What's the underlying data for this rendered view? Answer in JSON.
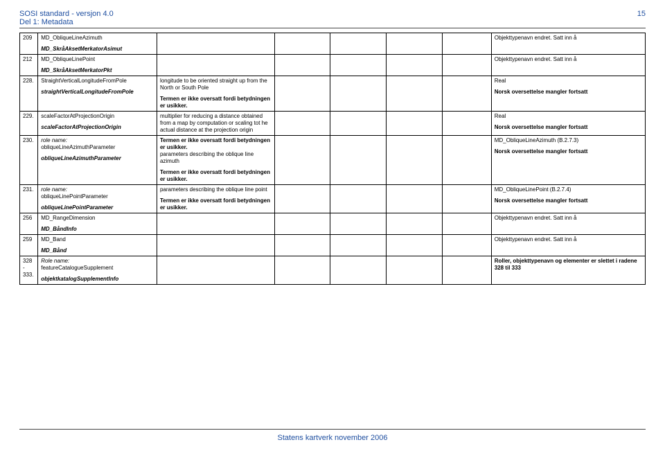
{
  "header": {
    "title1": "SOSI standard - versjon 4.0",
    "title2": "Del 1: Metadata",
    "page_num": "15"
  },
  "rows": [
    {
      "num": "209",
      "a1": "MD_ObliqueLineAzimuth",
      "a2_bi": "MD_SkråAksetMerkatorAsimut",
      "b1": "",
      "b2": "",
      "g1": "Objekttypenavn endret. Satt inn å",
      "g2": ""
    },
    {
      "num": "212",
      "a1": "MD_ObliqueLinePoint",
      "a2_bi": "MD_SkråAksetMerkatorPkt",
      "b1": "",
      "b2": "",
      "g1": "Objekttypenavn endret. Satt inn å",
      "g2": ""
    },
    {
      "num": "228.",
      "a1": "StraightVerticalLongitudeFromPole",
      "a2_bi": "straightVerticalLongitudeFromPole",
      "b1": "longitude to be oriented straight up from the North or South Pole",
      "b2_bold": "Termen er ikke oversatt fordi betydningen er usikker.",
      "g1": "Real",
      "g2_bold": "Norsk oversettelse mangler fortsatt"
    },
    {
      "num": "229.",
      "a1": "scaleFactorAtProjectionOrigin",
      "a2_bi": "scaleFactorAtProjectionOrigin",
      "b1": "multiplier for reducing a distance obtained from a map by computation or scaling tot he actual distance at the projection origin",
      "b2": "",
      "g1": "Real",
      "g2_bold": "Norsk oversettelse mangler fortsatt"
    },
    {
      "num": "230.",
      "a1_i": "role name:",
      "a1b": "obliqueLineAzimuthParameter",
      "a2_bi": "obliqueLineAzimuthParameter",
      "b0_bold": "Termen er ikke oversatt fordi betydningen er usikker.",
      "b1": "parameters describing the oblique line azimuth",
      "b2_bold": "Termen er ikke oversatt fordi betydningen er usikker.",
      "g1": "MD_ObliqueLineAzimuth (B.2.7.3)",
      "g2_bold": "Norsk oversettelse mangler fortsatt"
    },
    {
      "num": "231.",
      "a1_i": "role name:",
      "a1b": "obliqueLinePointParameter",
      "a2_bi": "obliqueLinePointParameter",
      "b1": "parameters describing the oblique line point",
      "b2_bold": "Termen er ikke oversatt fordi betydningen er usikker.",
      "g1": "MD_ObliqueLinePoint (B.2.7.4)",
      "g2_bold": "Norsk oversettelse mangler fortsatt"
    },
    {
      "num": "256",
      "a1": "MD_RangeDimension",
      "a2_bi": "MD_BåndInfo",
      "b1": "",
      "b2": "",
      "g1": "Objekttypenavn endret. Satt inn å",
      "g2": ""
    },
    {
      "num": "259",
      "a1": "MD_Band",
      "a2_bi": "MD_Bånd",
      "b1": "",
      "b2": "",
      "g1": "Objekttypenavn endret. Satt inn å",
      "g2": ""
    },
    {
      "num": "328 - 333.",
      "a1_i": "Role name:",
      "a1b": "featureCatalogueSupplement",
      "a2_bi": "objektkatalogSupplementInfo",
      "b1": "",
      "b2": "",
      "g1_bold": "Roller, objekttypenavn og elementer er slettet i radene 328 til 333",
      "g2": ""
    }
  ],
  "footer": "Statens kartverk november 2006"
}
